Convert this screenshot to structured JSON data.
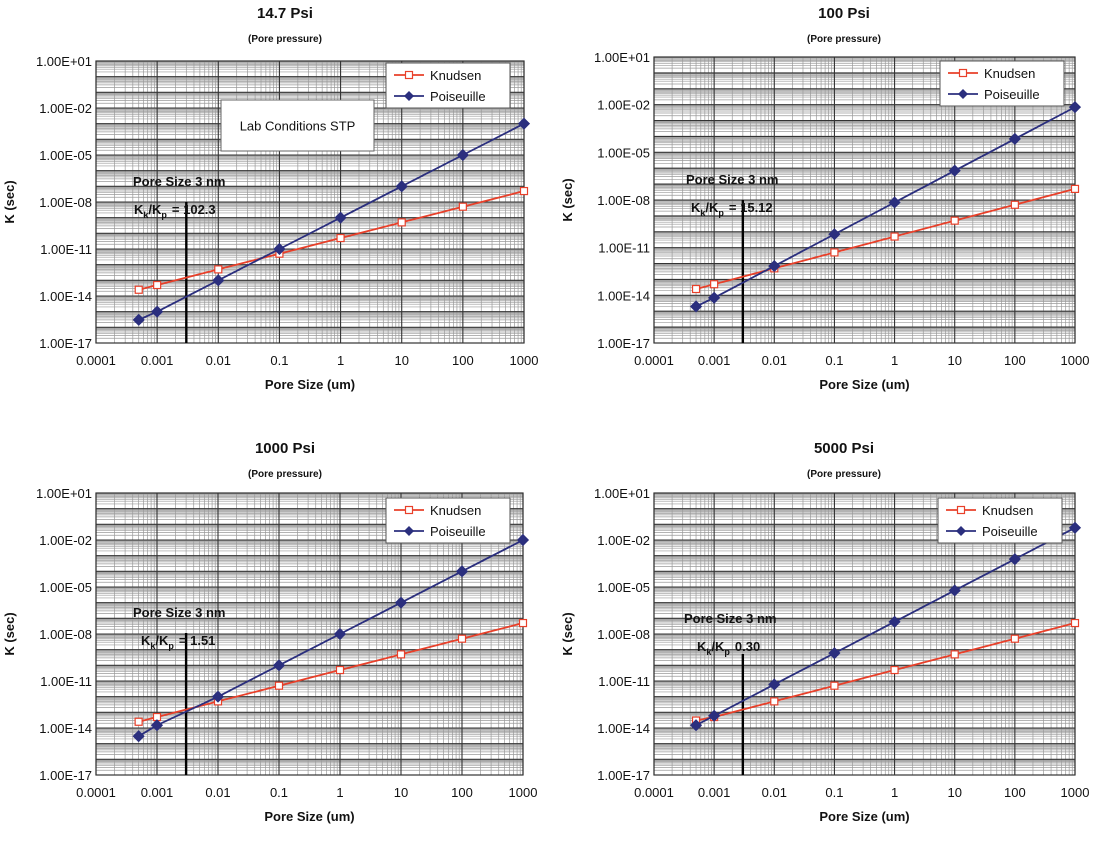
{
  "chart_data": [
    {
      "type": "line",
      "title": "14.7 Psi",
      "subtitle": "(Pore pressure)",
      "xlabel": "Pore Size (um)",
      "ylabel": "K (sec)",
      "xscale": "log",
      "yscale": "log",
      "xlim": [
        0.0001,
        1000
      ],
      "ylim": [
        1e-17,
        10
      ],
      "x_ticks": [
        "0.0001",
        "0.001",
        "0.01",
        "0.1",
        "1",
        "10",
        "100",
        "1000"
      ],
      "y_ticks": [
        "1.00E-17",
        "1.00E-14",
        "1.00E-11",
        "1.00E-08",
        "1.00E-05",
        "1.00E-02",
        "1.00E+01"
      ],
      "grid": true,
      "legend_position": "top-right",
      "series": [
        {
          "name": "Knudsen",
          "color": "#e8402a",
          "marker": "open-square",
          "x": [
            0.0005,
            0.001,
            0.01,
            0.1,
            1,
            10,
            100,
            1000
          ],
          "y": [
            2.5e-14,
            5e-14,
            5e-13,
            5e-12,
            5e-11,
            5e-10,
            5e-09,
            5e-08
          ]
        },
        {
          "name": "Poiseuille",
          "color": "#2b2f7e",
          "marker": "filled-diamond",
          "x": [
            0.0005,
            0.001,
            0.01,
            0.1,
            1,
            10,
            100,
            1000
          ],
          "y": [
            3e-16,
            1e-15,
            1e-13,
            1e-11,
            1e-09,
            1e-07,
            1e-05,
            0.001
          ]
        }
      ],
      "annotations": {
        "box_text": "Lab Conditions STP",
        "pore_size": "Pore Size 3 nm",
        "ratio_k": "K",
        "ratio_sub1": "k",
        "ratio_slash": "/K",
        "ratio_sub2": "p",
        "ratio_value": "= 102.3",
        "marker_line_x": 0.003
      }
    },
    {
      "type": "line",
      "title": "100 Psi",
      "subtitle": "(Pore pressure)",
      "xlabel": "Pore Size (um)",
      "ylabel": "K (sec)",
      "xscale": "log",
      "yscale": "log",
      "xlim": [
        0.0001,
        1000
      ],
      "ylim": [
        1e-17,
        10
      ],
      "x_ticks": [
        "0.0001",
        "0.001",
        "0.01",
        "0.1",
        "1",
        "10",
        "100",
        "1000"
      ],
      "y_ticks": [
        "1.00E-17",
        "1.00E-14",
        "1.00E-11",
        "1.00E-08",
        "1.00E-05",
        "1.00E-02",
        "1.00E+01"
      ],
      "grid": true,
      "legend_position": "top-right",
      "series": [
        {
          "name": "Knudsen",
          "color": "#e8402a",
          "marker": "open-square",
          "x": [
            0.0005,
            0.001,
            0.01,
            0.1,
            1,
            10,
            100,
            1000
          ],
          "y": [
            2.5e-14,
            5e-14,
            5e-13,
            5e-12,
            5e-11,
            5e-10,
            5e-09,
            5e-08
          ]
        },
        {
          "name": "Poiseuille",
          "color": "#2b2f7e",
          "marker": "filled-diamond",
          "x": [
            0.0005,
            0.001,
            0.01,
            0.1,
            1,
            10,
            100,
            1000
          ],
          "y": [
            2e-15,
            7e-15,
            7e-13,
            7e-11,
            7e-09,
            7e-07,
            7e-05,
            0.007
          ]
        }
      ],
      "annotations": {
        "pore_size": "Pore Size 3 nm",
        "ratio_k": "K",
        "ratio_sub1": "k",
        "ratio_slash": "/K",
        "ratio_sub2": "p",
        "ratio_value": "= 15.12",
        "marker_line_x": 0.003
      }
    },
    {
      "type": "line",
      "title": "1000 Psi",
      "subtitle": "(Pore pressure)",
      "xlabel": "Pore Size (um)",
      "ylabel": "K (sec)",
      "xscale": "log",
      "yscale": "log",
      "xlim": [
        0.0001,
        1000
      ],
      "ylim": [
        1e-17,
        10
      ],
      "x_ticks": [
        "0.0001",
        "0.001",
        "0.01",
        "0.1",
        "1",
        "10",
        "100",
        "1000"
      ],
      "y_ticks": [
        "1.00E-17",
        "1.00E-14",
        "1.00E-11",
        "1.00E-08",
        "1.00E-05",
        "1.00E-02",
        "1.00E+01"
      ],
      "grid": true,
      "legend_position": "top-right",
      "series": [
        {
          "name": "Knudsen",
          "color": "#e8402a",
          "marker": "open-square",
          "x": [
            0.0005,
            0.001,
            0.01,
            0.1,
            1,
            10,
            100,
            1000
          ],
          "y": [
            2.5e-14,
            5e-14,
            5e-13,
            5e-12,
            5e-11,
            5e-10,
            5e-09,
            5e-08
          ]
        },
        {
          "name": "Poiseuille",
          "color": "#2b2f7e",
          "marker": "filled-diamond",
          "x": [
            0.0005,
            0.001,
            0.01,
            0.1,
            1,
            10,
            100,
            1000
          ],
          "y": [
            3e-15,
            1.5e-14,
            1e-12,
            1e-10,
            1e-08,
            1e-06,
            0.0001,
            0.01
          ]
        }
      ],
      "annotations": {
        "pore_size": "Pore Size 3 nm",
        "ratio_k": "K",
        "ratio_sub1": "k",
        "ratio_slash": "/K",
        "ratio_sub2": "p",
        "ratio_value": "= 1.51",
        "marker_line_x": 0.003
      }
    },
    {
      "type": "line",
      "title": "5000 Psi",
      "subtitle": "(Pore pressure)",
      "xlabel": "Pore Size (um)",
      "ylabel": "K (sec)",
      "xscale": "log",
      "yscale": "log",
      "xlim": [
        0.0001,
        1000
      ],
      "ylim": [
        1e-17,
        10
      ],
      "x_ticks": [
        "0.0001",
        "0.001",
        "0.01",
        "0.1",
        "1",
        "10",
        "100",
        "1000"
      ],
      "y_ticks": [
        "1.00E-17",
        "1.00E-14",
        "1.00E-11",
        "1.00E-08",
        "1.00E-05",
        "1.00E-02",
        "1.00E+01"
      ],
      "grid": true,
      "legend_position": "top-right",
      "series": [
        {
          "name": "Knudsen",
          "color": "#e8402a",
          "marker": "open-square",
          "x": [
            0.0005,
            0.001,
            0.01,
            0.1,
            1,
            10,
            100,
            1000
          ],
          "y": [
            3e-14,
            5e-14,
            5e-13,
            5e-12,
            5e-11,
            5e-10,
            5e-09,
            5e-08
          ]
        },
        {
          "name": "Poiseuille",
          "color": "#2b2f7e",
          "marker": "filled-diamond",
          "x": [
            0.0005,
            0.001,
            0.01,
            0.1,
            1,
            10,
            100,
            1000
          ],
          "y": [
            1.5e-14,
            6e-14,
            6e-12,
            6e-10,
            6e-08,
            6e-06,
            0.0006,
            0.06
          ]
        }
      ],
      "annotations": {
        "pore_size": "Pore Size 3 nm",
        "ratio_k": "K",
        "ratio_sub1": "k",
        "ratio_slash": "/K",
        "ratio_sub2": "p",
        "ratio_value": "0.30",
        "marker_line_x": 0.003
      }
    }
  ]
}
